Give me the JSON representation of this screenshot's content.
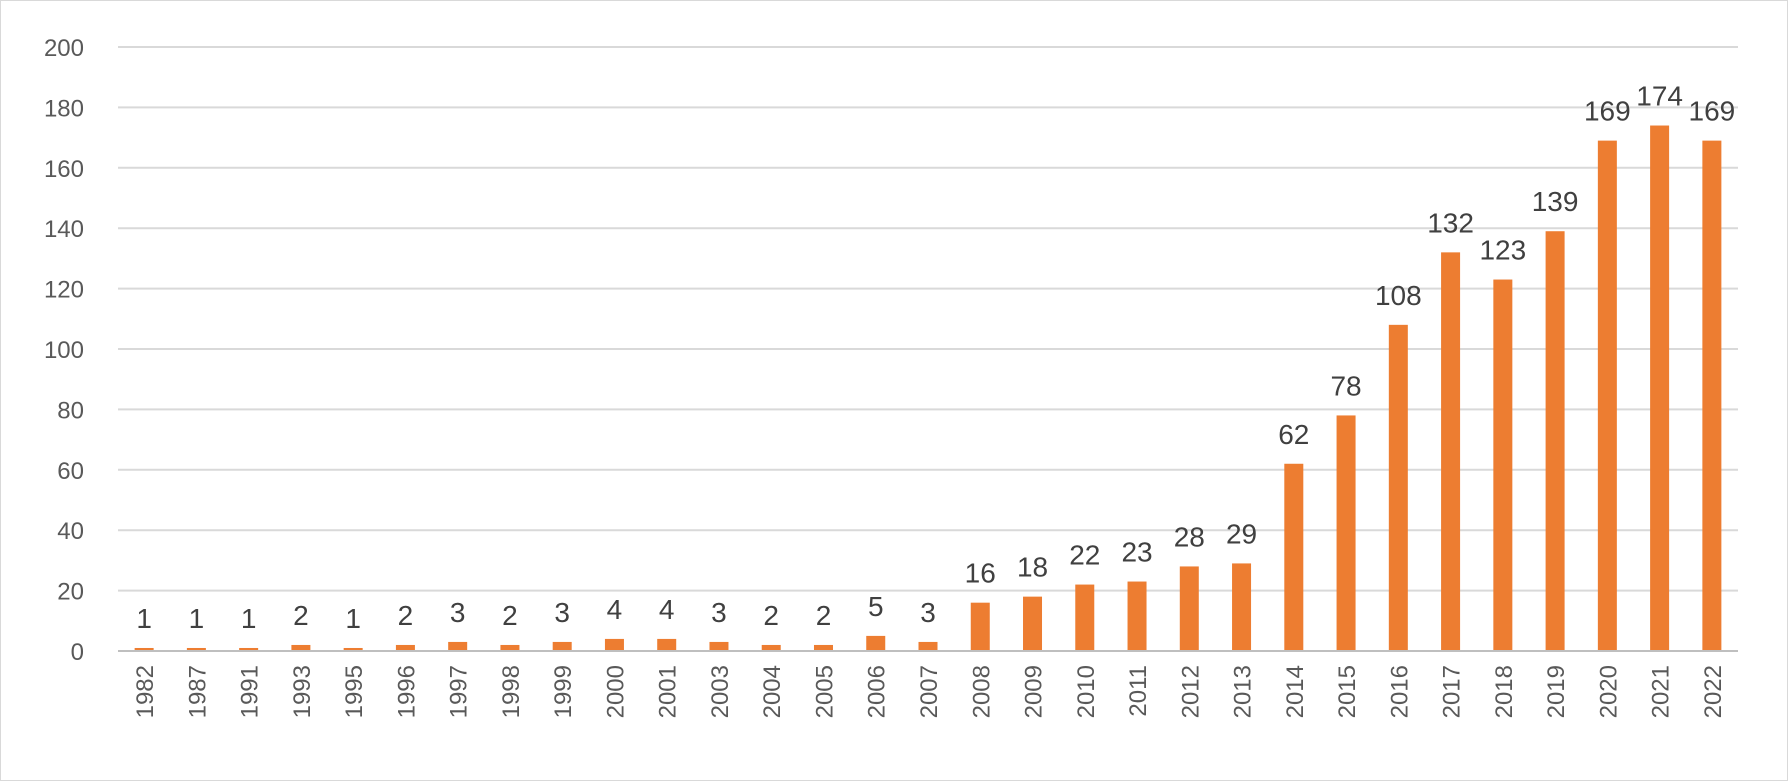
{
  "chart_data": {
    "type": "bar",
    "title": "",
    "xlabel": "",
    "ylabel": "",
    "categories": [
      "1982",
      "1987",
      "1991",
      "1993",
      "1995",
      "1996",
      "1997",
      "1998",
      "1999",
      "2000",
      "2001",
      "2003",
      "2004",
      "2005",
      "2006",
      "2007",
      "2008",
      "2009",
      "2010",
      "2011",
      "2012",
      "2013",
      "2014",
      "2015",
      "2016",
      "2017",
      "2018",
      "2019",
      "2020",
      "2021",
      "2022"
    ],
    "values": [
      1,
      1,
      1,
      2,
      1,
      2,
      3,
      2,
      3,
      4,
      4,
      3,
      2,
      2,
      5,
      3,
      16,
      18,
      22,
      23,
      28,
      29,
      62,
      78,
      108,
      132,
      123,
      139,
      169,
      174,
      169
    ],
    "ylim": [
      0,
      200
    ],
    "yticks": [
      0,
      20,
      40,
      60,
      80,
      100,
      120,
      140,
      160,
      180,
      200
    ],
    "grid": true,
    "legend": "none",
    "colors": {
      "bar": "#ED7D31",
      "grid": "#d9d9d9",
      "label": "#404040",
      "tick": "#595959"
    }
  }
}
